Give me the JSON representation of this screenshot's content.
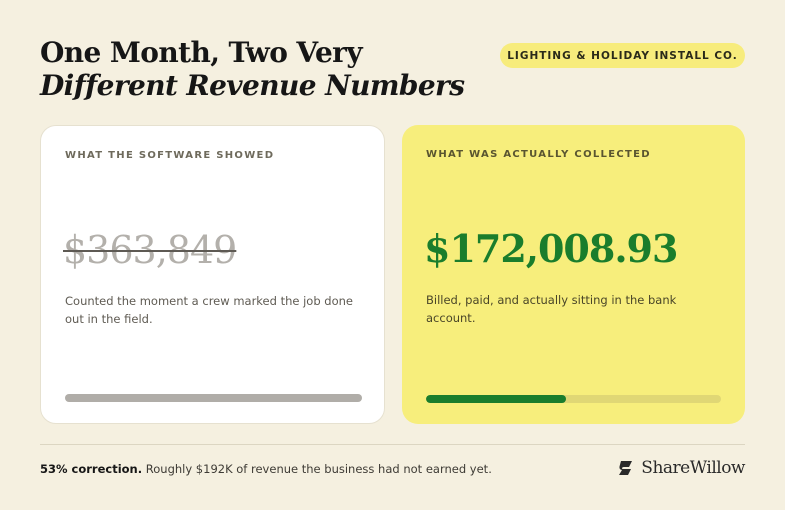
{
  "header": {
    "title_line1": "One Month, Two Very",
    "title_line2": "Different Revenue Numbers",
    "badge": "LIGHTING & HOLIDAY INSTALL CO."
  },
  "cards": {
    "software": {
      "label": "WHAT THE SOFTWARE SHOWED",
      "amount": "$363,849",
      "description": "Counted the moment a crew marked the job done out in the field.",
      "bar_fraction": 1.0
    },
    "collected": {
      "label": "WHAT WAS ACTUALLY COLLECTED",
      "amount": "$172,008.93",
      "description": "Billed, paid, and actually sitting in the bank account.",
      "bar_fraction": 0.473
    }
  },
  "footer": {
    "highlight": "53% correction.",
    "text": " Roughly $192K of revenue the business had not earned yet.",
    "brand": "ShareWillow"
  },
  "colors": {
    "background": "#f5f0e0",
    "accent_yellow": "#f7ee7c",
    "green": "#1a7d2c",
    "gray_bar": "#b0ada8"
  }
}
